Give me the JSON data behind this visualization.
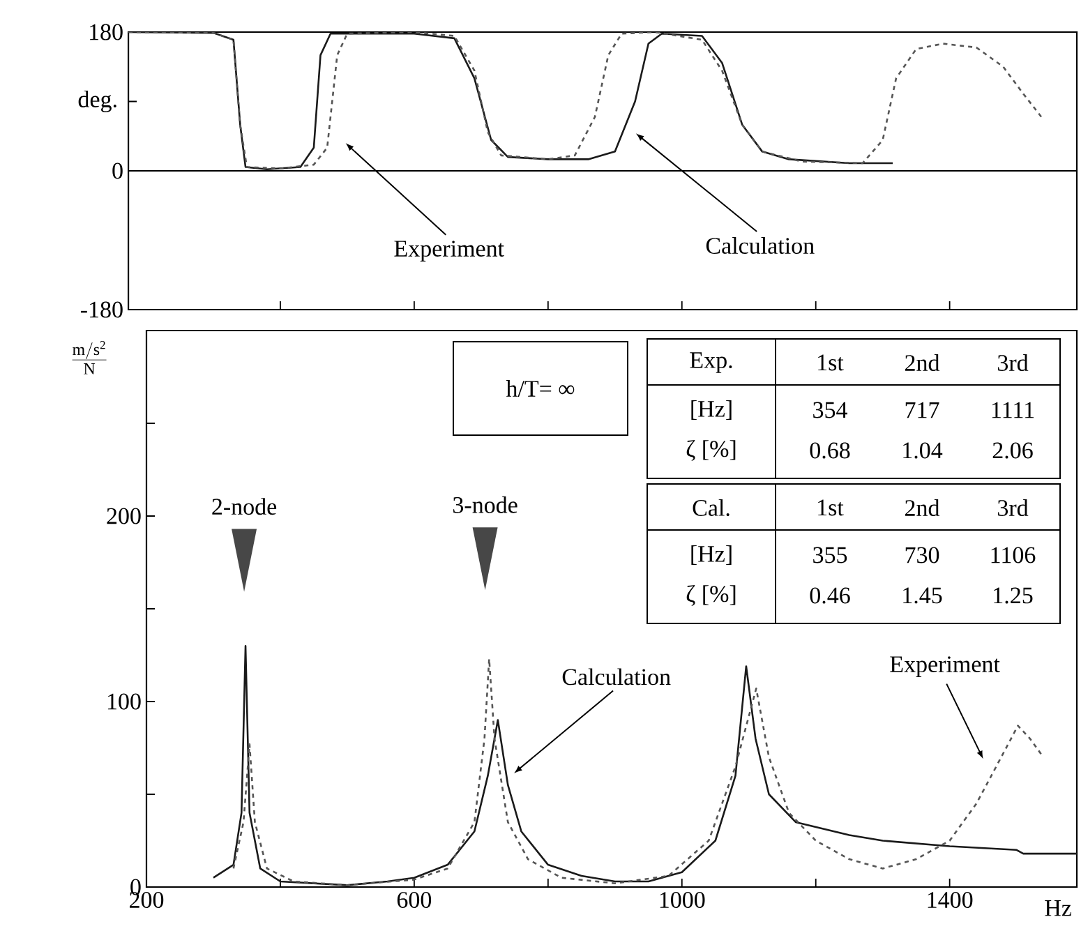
{
  "chart_data": [
    {
      "type": "line",
      "ylabel": "deg.",
      "xlim": [
        173,
        1590
      ],
      "ylim": [
        -180,
        180
      ],
      "xticks": [
        400,
        600,
        800,
        1000,
        1200,
        1400
      ],
      "yticks": [
        180,
        {
          "value": 90,
          "label": null
        },
        0,
        -180
      ],
      "tick_labels": "y",
      "ref_lines": [
        {
          "axis": "y",
          "value": 0
        }
      ],
      "series": [
        {
          "color": "#1a1a1a",
          "line_style": "solid",
          "x": [
            173,
            300,
            330,
            340,
            348,
            380,
            430,
            450,
            460,
            475,
            600,
            660,
            690,
            715,
            740,
            800,
            860,
            900,
            930,
            950,
            970,
            1030,
            1060,
            1090,
            1120,
            1160,
            1250,
            1315
          ],
          "values": [
            180,
            179,
            170,
            60,
            5,
            2,
            5,
            30,
            150,
            178,
            178,
            172,
            120,
            40,
            18,
            15,
            15,
            25,
            90,
            165,
            178,
            175,
            140,
            60,
            25,
            15,
            10,
            10
          ]
        },
        {
          "color": "#555555",
          "line_style": "dashed",
          "x": [
            173,
            300,
            330,
            340,
            350,
            400,
            450,
            470,
            485,
            500,
            600,
            660,
            690,
            710,
            730,
            800,
            840,
            870,
            890,
            910,
            960,
            1030,
            1060,
            1090,
            1120,
            1180,
            1270,
            1300,
            1320,
            1350,
            1390,
            1440,
            1480,
            1510,
            1537
          ],
          "values": [
            180,
            179,
            170,
            60,
            5,
            3,
            8,
            30,
            150,
            178,
            180,
            175,
            130,
            50,
            20,
            15,
            20,
            70,
            150,
            178,
            180,
            170,
            130,
            60,
            25,
            12,
            10,
            40,
            120,
            158,
            165,
            160,
            135,
            100,
            70
          ]
        }
      ],
      "annotations": [
        "Experiment",
        "Calculation"
      ]
    },
    {
      "type": "line",
      "ylabel": "\\frac{\\mathrm{m/s^{2}}}{\\mathrm{N}}",
      "xlabel": "Hz",
      "xlim": [
        200,
        1590
      ],
      "ylim": [
        0,
        300
      ],
      "xticks": [
        200,
        {
          "value": 400,
          "label": null
        },
        600,
        {
          "value": 800,
          "label": null
        },
        1000,
        {
          "value": 1200,
          "label": null
        },
        1400
      ],
      "yticks": [
        0,
        {
          "value": 50,
          "label": null
        },
        100,
        {
          "value": 150,
          "label": null
        },
        200,
        {
          "value": 250,
          "label": null
        }
      ],
      "series": [
        {
          "color": "#1a1a1a",
          "line_style": "solid",
          "x": [
            300,
            330,
            342,
            348,
            354,
            370,
            400,
            500,
            560,
            600,
            650,
            690,
            710,
            725,
            740,
            760,
            800,
            850,
            900,
            950,
            1000,
            1050,
            1080,
            1096,
            1110,
            1130,
            1170,
            1250,
            1300,
            1400,
            1500,
            1510,
            1590
          ],
          "values": [
            5,
            12,
            40,
            130,
            40,
            10,
            3,
            1,
            3,
            5,
            12,
            30,
            60,
            90,
            55,
            30,
            12,
            6,
            3,
            3,
            8,
            25,
            60,
            119,
            80,
            50,
            35,
            28,
            25,
            22,
            20,
            18,
            18
          ]
        },
        {
          "color": "#555555",
          "line_style": "dashed",
          "x": [
            330,
            345,
            354,
            362,
            380,
            420,
            500,
            600,
            650,
            690,
            705,
            712,
            720,
            740,
            770,
            820,
            900,
            980,
            1040,
            1080,
            1111,
            1130,
            1160,
            1200,
            1250,
            1300,
            1350,
            1400,
            1440,
            1480,
            1502,
            1520,
            1540
          ],
          "values": [
            10,
            35,
            77,
            35,
            10,
            3,
            1,
            4,
            10,
            35,
            80,
            123,
            80,
            35,
            15,
            5,
            2,
            6,
            25,
            65,
            107,
            70,
            40,
            25,
            15,
            10,
            15,
            25,
            45,
            72,
            87,
            80,
            70
          ]
        }
      ],
      "annotations": [
        "2-node",
        "3-node",
        "Calculation",
        "Experiment",
        "h/T= ∞",
        "Exp.",
        "1st",
        "2nd",
        "3rd",
        "[Hz]",
        "354",
        "717",
        "1111",
        "ζ [%]",
        "0.68",
        "1.04",
        "2.06",
        "Cal.",
        "1st",
        "2nd",
        "3rd",
        "[Hz]",
        "355",
        "730",
        "1106",
        "ζ [%]",
        "0.46",
        "1.45",
        "1.25"
      ]
    }
  ]
}
